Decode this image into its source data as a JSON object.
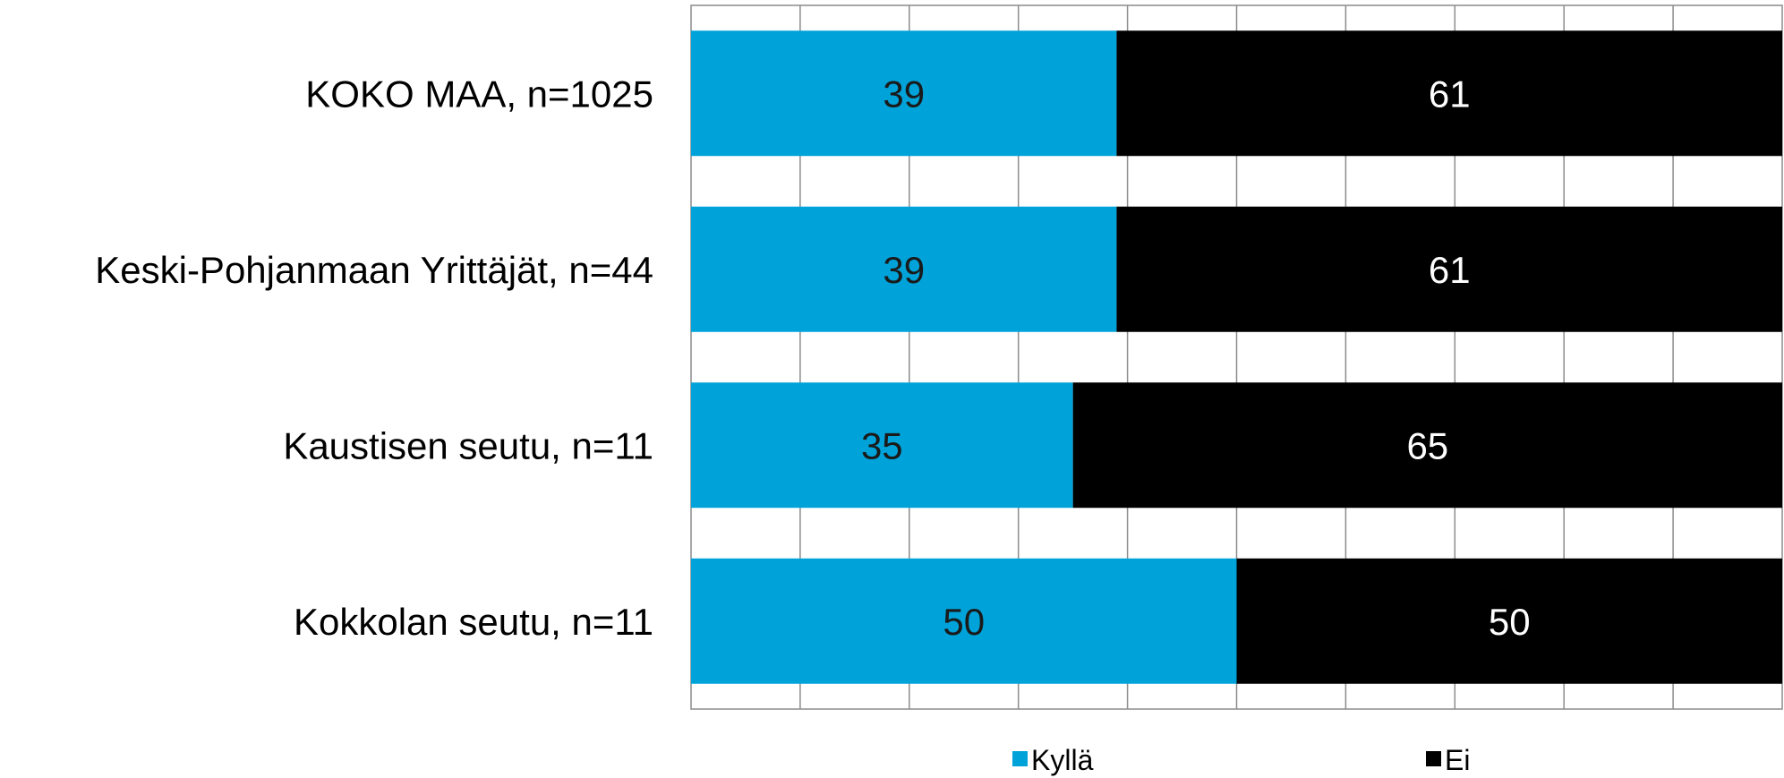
{
  "chart_data": {
    "type": "bar",
    "orientation": "horizontal",
    "stacked": true,
    "categories": [
      "KOKO MAA, n=1025",
      "Keski-Pohjanmaan Yrittäjät, n=44",
      "Kaustisen seutu, n=11",
      "Kokkolan seutu, n=11"
    ],
    "series": [
      {
        "name": "Kyllä",
        "values": [
          39,
          39,
          35,
          50
        ],
        "value_labels": [
          "39",
          "39",
          "35",
          "50"
        ],
        "color": "#00a3d9",
        "label_color": "#1a1a1a"
      },
      {
        "name": "Ei",
        "values": [
          61,
          61,
          65,
          50
        ],
        "value_labels": [
          "61",
          "61",
          "65",
          "50"
        ],
        "color": "#000000",
        "label_color": "#ffffff"
      }
    ],
    "xlim": [
      0,
      100
    ],
    "grid": true,
    "legend_position": "bottom-center"
  }
}
